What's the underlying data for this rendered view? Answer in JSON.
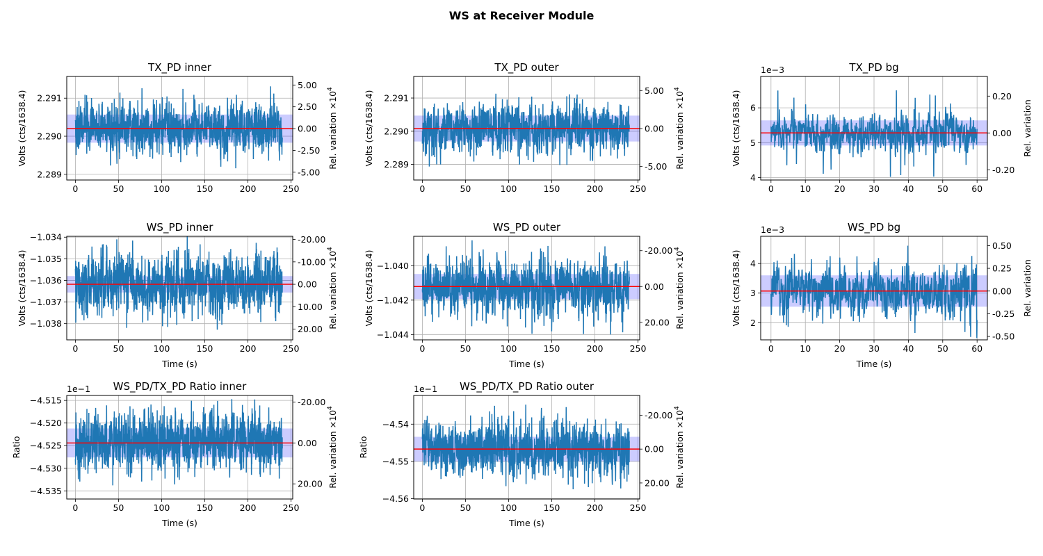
{
  "suptitle": "WS at Receiver Module",
  "colors": {
    "line": "#1f77b4",
    "mean": "#ff0000",
    "band": "#0000ff",
    "grid": "#b0b0b0"
  },
  "chart_data": [
    {
      "type": "line",
      "title": "TX_PD inner",
      "xlabel": "",
      "ylabel": "Volts (cts/1638.4)",
      "ylabel_right": "Rel. variation ×10",
      "ylabel_right_exp": "4",
      "offset_text": "",
      "xlim": [
        -10,
        252
      ],
      "ylim": [
        2.28885,
        2.29157
      ],
      "xticks": [
        0,
        50,
        100,
        150,
        200,
        250
      ],
      "xtick_labels": [
        "0",
        "50",
        "100",
        "150",
        "200",
        "250"
      ],
      "yticks": [
        2.289,
        2.29,
        2.291
      ],
      "ytick_labels": [
        "2.289",
        "2.290",
        "2.291"
      ],
      "rticks": [
        5.0,
        2.5,
        0.0,
        -2.5,
        -5.0
      ],
      "rtick_labels": [
        "5.00",
        "2.50",
        "0.00",
        "-2.50",
        "-5.00"
      ],
      "rel_scale": 0.0001,
      "x_range": [
        0,
        240
      ],
      "mean": 2.2902,
      "std_band": 0.00037,
      "noise": 0.00038,
      "spike": 0.00105,
      "seed": 11
    },
    {
      "type": "line",
      "title": "TX_PD outer",
      "xlabel": "",
      "ylabel": "Volts (cts/1638.4)",
      "ylabel_right": "Rel. variation ×10",
      "ylabel_right_exp": "4",
      "offset_text": "",
      "xlim": [
        -10,
        252
      ],
      "ylim": [
        2.28853,
        2.29165
      ],
      "xticks": [
        0,
        50,
        100,
        150,
        200,
        250
      ],
      "xtick_labels": [
        "0",
        "50",
        "100",
        "150",
        "200",
        "250"
      ],
      "yticks": [
        2.289,
        2.29,
        2.291
      ],
      "ytick_labels": [
        "2.289",
        "2.290",
        "2.291"
      ],
      "rticks": [
        5.0,
        0.0,
        -5.0
      ],
      "rtick_labels": [
        "5.00",
        "0.00",
        "-5.00"
      ],
      "rel_scale": 0.0001,
      "x_range": [
        0,
        240
      ],
      "mean": 2.29008,
      "std_band": 0.00039,
      "noise": 0.00042,
      "spike": 0.00115,
      "seed": 23
    },
    {
      "type": "line",
      "title": "TX_PD bg",
      "xlabel": "",
      "ylabel": "Volts (cts/1638.4)",
      "ylabel_right": "Rel. variation",
      "ylabel_right_exp": "",
      "offset_text": "1e−3",
      "xlim": [
        -3,
        63
      ],
      "ylim": [
        3.93,
        6.9
      ],
      "xticks": [
        0,
        10,
        20,
        30,
        40,
        50,
        60
      ],
      "xtick_labels": [
        "0",
        "10",
        "20",
        "30",
        "40",
        "50",
        "60"
      ],
      "yticks": [
        4,
        5,
        6
      ],
      "ytick_labels": [
        "4",
        "5",
        "6"
      ],
      "rticks": [
        0.2,
        0.0,
        -0.2
      ],
      "rtick_labels": [
        "0.20",
        "0.00",
        "-0.20"
      ],
      "rel_scale": 1,
      "x_range": [
        0,
        60
      ],
      "mean": 5.28,
      "std_band": 0.36,
      "noise": 0.34,
      "spike": 1.3,
      "seed": 37
    },
    {
      "type": "line",
      "title": "WS_PD inner",
      "xlabel": "Time (s)",
      "ylabel": "Volts (cts/1638.4)",
      "ylabel_right": "Rel. variation ×10",
      "ylabel_right_exp": "4",
      "offset_text": "",
      "xlim": [
        -10,
        252
      ],
      "ylim": [
        -1.03875,
        -1.03396
      ],
      "xticks": [
        0,
        50,
        100,
        150,
        200,
        250
      ],
      "xtick_labels": [
        "0",
        "50",
        "100",
        "150",
        "200",
        "250"
      ],
      "yticks": [
        -1.038,
        -1.037,
        -1.036,
        -1.035,
        -1.034
      ],
      "ytick_labels": [
        "−1.038",
        "−1.037",
        "−1.036",
        "−1.035",
        "−1.034"
      ],
      "rticks": [
        20.0,
        10.0,
        0.0,
        -10.0,
        -20.0
      ],
      "rtick_labels": [
        "20.00",
        "10.00",
        "0.00",
        "-10.00",
        "-20.00"
      ],
      "rel_scale": 0.0001,
      "rel_inverted": true,
      "x_range": [
        0,
        240
      ],
      "mean": -1.03618,
      "std_band": 0.00038,
      "noise": 0.00085,
      "spike": 0.0021,
      "seed": 41
    },
    {
      "type": "line",
      "title": "WS_PD outer",
      "xlabel": "Time (s)",
      "ylabel": "Volts (cts/1638.4)",
      "ylabel_right": "Rel. variation ×10",
      "ylabel_right_exp": "4",
      "offset_text": "",
      "xlim": [
        -10,
        252
      ],
      "ylim": [
        -1.04431,
        -1.03829
      ],
      "xticks": [
        0,
        50,
        100,
        150,
        200,
        250
      ],
      "xtick_labels": [
        "0",
        "50",
        "100",
        "150",
        "200",
        "250"
      ],
      "yticks": [
        -1.044,
        -1.042,
        -1.04
      ],
      "ytick_labels": [
        "−1.044",
        "−1.042",
        "−1.040"
      ],
      "rticks": [
        20.0,
        0.0,
        -20.0
      ],
      "rtick_labels": [
        "20.00",
        "0.00",
        "-20.00"
      ],
      "rel_scale": 0.0001,
      "rel_inverted": true,
      "x_range": [
        0,
        240
      ],
      "mean": -1.04121,
      "std_band": 0.00073,
      "noise": 0.001,
      "spike": 0.0028,
      "seed": 53
    },
    {
      "type": "line",
      "title": "WS_PD bg",
      "xlabel": "Time (s)",
      "ylabel": "Volts (cts/1638.4)",
      "ylabel_right": "Rel. variation",
      "ylabel_right_exp": "",
      "offset_text": "1e−3",
      "xlim": [
        -3,
        63
      ],
      "ylim": [
        1.42,
        4.92
      ],
      "xticks": [
        0,
        10,
        20,
        30,
        40,
        50,
        60
      ],
      "xtick_labels": [
        "0",
        "10",
        "20",
        "30",
        "40",
        "50",
        "60"
      ],
      "yticks": [
        2,
        3,
        4
      ],
      "ytick_labels": [
        "2",
        "3",
        "4"
      ],
      "rticks": [
        0.5,
        0.25,
        0.0,
        -0.25,
        -0.5
      ],
      "rtick_labels": [
        "0.50",
        "0.25",
        "0.00",
        "-0.25",
        "-0.50"
      ],
      "rel_scale": 1,
      "x_range": [
        0,
        60
      ],
      "mean": 3.07,
      "std_band": 0.53,
      "noise": 0.55,
      "spike": 1.7,
      "seed": 67
    },
    {
      "type": "line",
      "title": "WS_PD/TX_PD Ratio inner",
      "xlabel": "Time (s)",
      "ylabel": "Ratio",
      "ylabel_right": "Rel. variation ×10",
      "ylabel_right_exp": "4",
      "offset_text": "1e−1",
      "xlim": [
        -10,
        252
      ],
      "ylim": [
        -4.5368,
        -4.5139
      ],
      "xticks": [
        0,
        50,
        100,
        150,
        200,
        250
      ],
      "xtick_labels": [
        "0",
        "50",
        "100",
        "150",
        "200",
        "250"
      ],
      "yticks": [
        -4.535,
        -4.53,
        -4.525,
        -4.52,
        -4.515
      ],
      "ytick_labels": [
        "−4.535",
        "−4.530",
        "−4.525",
        "−4.520",
        "−4.515"
      ],
      "rticks": [
        20.0,
        0.0,
        -20.0
      ],
      "rtick_labels": [
        "20.00",
        "0.00",
        "-20.00"
      ],
      "rel_scale": 0.0001,
      "rel_inverted": true,
      "x_range": [
        0,
        240
      ],
      "mean": -4.5244,
      "std_band": 0.0032,
      "noise": 0.004,
      "spike": 0.0095,
      "seed": 79
    },
    {
      "type": "line",
      "title": "WS_PD/TX_PD Ratio outer",
      "xlabel": "Time (s)",
      "ylabel": "Ratio",
      "ylabel_right": "Rel. variation ×10",
      "ylabel_right_exp": "4",
      "offset_text": "1e−1",
      "xlim": [
        -10,
        252
      ],
      "ylim": [
        -4.5601,
        -4.5323
      ],
      "xticks": [
        0,
        50,
        100,
        150,
        200,
        250
      ],
      "xtick_labels": [
        "0",
        "50",
        "100",
        "150",
        "200",
        "250"
      ],
      "yticks": [
        -4.56,
        -4.55,
        -4.54
      ],
      "ytick_labels": [
        "−4.56",
        "−4.55",
        "−4.54"
      ],
      "rticks": [
        20.0,
        0.0,
        -20.0
      ],
      "rtick_labels": [
        "20.00",
        "0.00",
        "-20.00"
      ],
      "rel_scale": 0.0001,
      "rel_inverted": true,
      "x_range": [
        0,
        240
      ],
      "mean": -4.5467,
      "std_band": 0.0033,
      "noise": 0.0045,
      "spike": 0.011,
      "seed": 97
    }
  ]
}
